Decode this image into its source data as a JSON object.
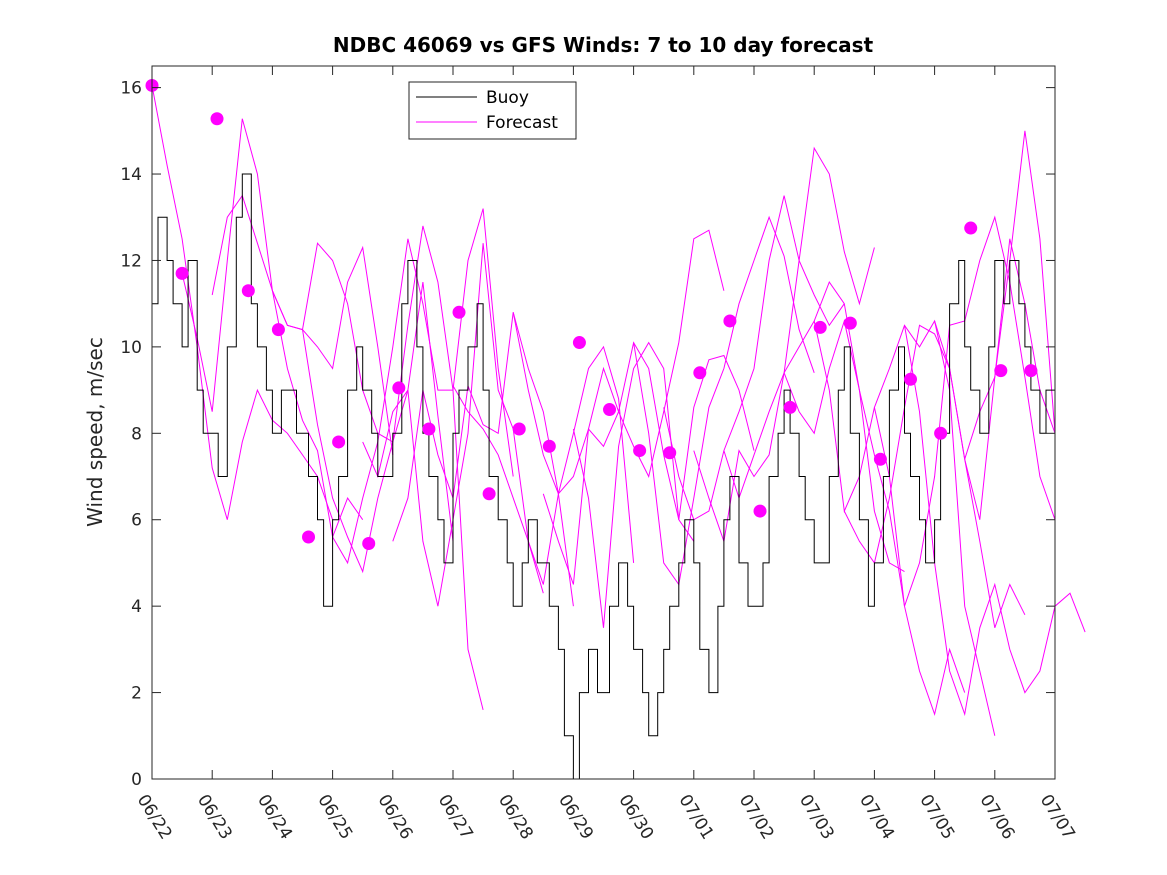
{
  "chart_data": {
    "type": "line",
    "title": "NDBC 46069 vs GFS Winds: 7 to 10 day forecast",
    "xlabel": "",
    "ylabel": "Wind speed, m/sec",
    "xlim": [
      0,
      15
    ],
    "ylim": [
      0,
      16.5
    ],
    "x_ticks": [
      "06/22",
      "06/23",
      "06/24",
      "06/25",
      "06/26",
      "06/27",
      "06/28",
      "06/29",
      "06/30",
      "07/01",
      "07/02",
      "07/03",
      "07/04",
      "07/05",
      "07/06",
      "07/07"
    ],
    "y_ticks": [
      0,
      2,
      4,
      6,
      8,
      10,
      12,
      14,
      16
    ],
    "grid": false,
    "legend": {
      "position": "top-center",
      "entries": [
        "Buoy",
        "Forecast"
      ]
    },
    "colors": {
      "buoy": "#000000",
      "forecast": "#ff00ff"
    },
    "series": [
      {
        "name": "Buoy",
        "x": [
          0,
          0.1,
          0.25,
          0.35,
          0.5,
          0.6,
          0.75,
          0.85,
          1.0,
          1.1,
          1.25,
          1.4,
          1.5,
          1.65,
          1.75,
          1.9,
          2.0,
          2.15,
          2.25,
          2.4,
          2.5,
          2.6,
          2.75,
          2.85,
          3.0,
          3.1,
          3.25,
          3.4,
          3.5,
          3.65,
          3.75,
          3.9,
          4.0,
          4.15,
          4.25,
          4.4,
          4.5,
          4.6,
          4.75,
          4.85,
          5.0,
          5.1,
          5.25,
          5.4,
          5.5,
          5.6,
          5.75,
          5.9,
          6.0,
          6.15,
          6.25,
          6.4,
          6.5,
          6.6,
          6.75,
          6.85,
          7.0,
          7.1,
          7.25,
          7.4,
          7.5,
          7.6,
          7.75,
          7.9,
          8.0,
          8.15,
          8.25,
          8.4,
          8.5,
          8.6,
          8.75,
          8.85,
          9.0,
          9.1,
          9.25,
          9.4,
          9.5,
          9.6,
          9.75,
          9.9,
          10.0,
          10.15,
          10.25,
          10.4,
          10.5,
          10.6,
          10.75,
          10.85,
          11.0,
          11.1,
          11.25,
          11.4,
          11.5,
          11.6,
          11.75,
          11.9,
          12.0,
          12.15,
          12.25,
          12.4,
          12.5,
          12.6,
          12.75,
          12.85,
          13.0,
          13.1,
          13.25,
          13.4,
          13.5,
          13.6,
          13.75,
          13.9,
          14.0,
          14.15,
          14.25,
          14.4,
          14.5,
          14.6,
          14.75,
          14.85,
          15.0
        ],
        "values": [
          11,
          13,
          12,
          11,
          10,
          12,
          9,
          8,
          8,
          7,
          10,
          13,
          14,
          11,
          10,
          9,
          8,
          9,
          9,
          8,
          8,
          7,
          6,
          4,
          6,
          7,
          9,
          10,
          9,
          8,
          7,
          7,
          8,
          11,
          12,
          10,
          8,
          7,
          6,
          5,
          8,
          9,
          10,
          11,
          9,
          7,
          6,
          5,
          4,
          5,
          6,
          5,
          5,
          4,
          3,
          1,
          0,
          2,
          3,
          2,
          2,
          4,
          5,
          4,
          3,
          2,
          1,
          2,
          3,
          4,
          5,
          6,
          5,
          3,
          2,
          4,
          6,
          7,
          5,
          4,
          4,
          5,
          7,
          8,
          9,
          8,
          7,
          6,
          5,
          5,
          7,
          9,
          10,
          8,
          6,
          4,
          5,
          7,
          9,
          10,
          8,
          7,
          6,
          5,
          6,
          8,
          11,
          12,
          10,
          9,
          8,
          10,
          12,
          11,
          12,
          11,
          10,
          9,
          8,
          9,
          10
        ]
      },
      {
        "name": "Forecast",
        "runs": [
          {
            "x": [
              0,
              0.25,
              0.5,
              0.75,
              1.0,
              1.25,
              1.5,
              1.75,
              2.0,
              2.25,
              2.5,
              2.75,
              3.0
            ],
            "values": [
              16.05,
              14.2,
              12.5,
              10.0,
              7.2,
              6.0,
              7.8,
              9.0,
              8.3,
              8.0,
              7.5,
              7.0,
              6.0
            ]
          },
          {
            "x": [
              0.5,
              0.75,
              1.0,
              1.25,
              1.5,
              1.75,
              2.0,
              2.25,
              2.5,
              2.75,
              3.0,
              3.25,
              3.5
            ],
            "values": [
              11.7,
              10.2,
              8.5,
              12.0,
              15.28,
              14.0,
              11.3,
              9.5,
              8.3,
              7.6,
              5.6,
              6.5,
              6.0
            ]
          },
          {
            "x": [
              1.0,
              1.25,
              1.5,
              1.75,
              2.0,
              2.25,
              2.5,
              2.75,
              3.0,
              3.25,
              3.5,
              3.75,
              4.0
            ],
            "values": [
              11.2,
              13.0,
              13.5,
              12.4,
              11.3,
              10.5,
              10.4,
              10.0,
              9.5,
              11.5,
              12.3,
              10.0,
              7.5
            ]
          },
          {
            "x": [
              2.0,
              2.25,
              2.5,
              2.75,
              3.0,
              3.25,
              3.5,
              3.75,
              4.0,
              4.25,
              4.5,
              4.75,
              5.0
            ],
            "values": [
              11.3,
              10.5,
              10.4,
              12.4,
              12.0,
              11.0,
              9.0,
              8.0,
              7.8,
              9.0,
              11.5,
              8.4,
              5.5
            ]
          },
          {
            "x": [
              2.5,
              2.75,
              3.0,
              3.25,
              3.5,
              3.75,
              4.0,
              4.25,
              4.5,
              4.75,
              5.0,
              5.25,
              5.5
            ],
            "values": [
              10.4,
              8.2,
              6.5,
              5.6,
              4.8,
              6.5,
              7.8,
              10.5,
              12.8,
              11.5,
              9.0,
              3.0,
              1.6
            ]
          },
          {
            "x": [
              3.0,
              3.25,
              3.5,
              3.75,
              4.0,
              4.25,
              4.5,
              4.75,
              5.0,
              5.25,
              5.5,
              5.75,
              6.0
            ],
            "values": [
              5.6,
              5.0,
              6.5,
              7.8,
              10.0,
              12.5,
              11.0,
              9.0,
              9.0,
              12.0,
              13.2,
              9.5,
              7.0
            ]
          },
          {
            "x": [
              3.5,
              3.75,
              4.0,
              4.25,
              4.5,
              4.75,
              5.0,
              5.25,
              5.5,
              5.75,
              6.0,
              6.25,
              6.5
            ],
            "values": [
              7.8,
              7.0,
              8.5,
              9.0,
              5.5,
              4.0,
              6.0,
              8.0,
              12.4,
              9.0,
              8.1,
              5.5,
              4.3
            ]
          },
          {
            "x": [
              4.0,
              4.25,
              4.5,
              4.75,
              5.0,
              5.25,
              5.5,
              5.75,
              6.0,
              6.25,
              6.5,
              6.75,
              7.0
            ],
            "values": [
              5.5,
              6.5,
              9.0,
              7.5,
              6.5,
              9.1,
              8.2,
              8.0,
              10.8,
              9.5,
              8.5,
              6.6,
              4.0
            ]
          },
          {
            "x": [
              5.0,
              5.25,
              5.5,
              5.75,
              6.0,
              6.25,
              6.5,
              6.75,
              7.0,
              7.25,
              7.5,
              7.75,
              8.0
            ],
            "values": [
              9.1,
              8.5,
              8.1,
              7.5,
              6.5,
              5.5,
              4.5,
              6.6,
              8.0,
              9.5,
              10.0,
              8.8,
              5.0
            ]
          },
          {
            "x": [
              6.0,
              6.25,
              6.5,
              6.75,
              7.0,
              7.25,
              7.5,
              7.75,
              8.0,
              8.25,
              8.5,
              8.75,
              9.0
            ],
            "values": [
              10.8,
              9.0,
              7.5,
              6.6,
              7.0,
              8.1,
              7.7,
              8.5,
              10.1,
              9.5,
              7.5,
              6.0,
              5.5
            ]
          },
          {
            "x": [
              6.5,
              6.75,
              7.0,
              7.25,
              7.5,
              7.75,
              8.0,
              8.25,
              8.5,
              8.75,
              9.0,
              9.25,
              9.5
            ],
            "values": [
              6.6,
              5.5,
              4.5,
              8.1,
              9.5,
              8.5,
              7.7,
              7.0,
              8.5,
              10.1,
              12.5,
              12.7,
              11.3
            ]
          },
          {
            "x": [
              7.0,
              7.25,
              7.5,
              7.75,
              8.0,
              8.25,
              8.5,
              8.75,
              9.0,
              9.25,
              9.5,
              9.75,
              10.0
            ],
            "values": [
              8.1,
              6.5,
              3.5,
              7.7,
              9.5,
              10.1,
              9.5,
              6.0,
              8.6,
              9.7,
              9.8,
              9.0,
              7.6
            ]
          },
          {
            "x": [
              8.0,
              8.25,
              8.5,
              8.75,
              9.0,
              9.25,
              9.5,
              9.75,
              10.0,
              10.25,
              10.5,
              10.75,
              11.0
            ],
            "values": [
              10.1,
              8.0,
              5.0,
              4.5,
              6.5,
              8.6,
              9.5,
              11.0,
              12.0,
              13.0,
              12.1,
              10.4,
              9.4
            ]
          },
          {
            "x": [
              8.5,
              8.75,
              9.0,
              9.25,
              9.5,
              9.75,
              10.0,
              10.25,
              10.5,
              10.75,
              11.0,
              11.25,
              11.5
            ],
            "values": [
              8.6,
              7.0,
              6.0,
              6.2,
              7.6,
              8.5,
              9.5,
              12.0,
              13.5,
              12.0,
              11.2,
              10.5,
              11.0
            ]
          },
          {
            "x": [
              9.0,
              9.25,
              9.5,
              9.75,
              10.0,
              10.25,
              10.5,
              10.75,
              11.0,
              11.25,
              11.5,
              11.75,
              12.0
            ],
            "values": [
              7.6,
              6.5,
              5.5,
              7.6,
              7.0,
              7.5,
              9.4,
              12.0,
              14.6,
              14.0,
              12.2,
              11.0,
              12.3
            ]
          },
          {
            "x": [
              9.5,
              9.75,
              10.0,
              10.25,
              10.5,
              10.75,
              11.0,
              11.25,
              11.5,
              11.75,
              12.0,
              12.25,
              12.5
            ],
            "values": [
              7.6,
              6.5,
              7.5,
              8.5,
              9.4,
              10.0,
              10.6,
              11.5,
              11.0,
              9.0,
              6.2,
              5.0,
              4.8
            ]
          },
          {
            "x": [
              10.5,
              10.75,
              11.0,
              11.25,
              11.5,
              11.75,
              12.0,
              12.25,
              12.5,
              12.75,
              13.0,
              13.25,
              13.5
            ],
            "values": [
              9.4,
              8.5,
              8.0,
              9.5,
              10.6,
              9.0,
              7.5,
              6.2,
              4.0,
              2.5,
              1.5,
              3.0,
              2.0
            ]
          },
          {
            "x": [
              11.0,
              11.25,
              11.5,
              11.75,
              12.0,
              12.25,
              12.5,
              12.75,
              13.0,
              13.25,
              13.5,
              13.75,
              14.0
            ],
            "values": [
              10.6,
              9.0,
              6.2,
              7.0,
              8.6,
              9.5,
              10.5,
              10.0,
              10.6,
              9.0,
              4.0,
              2.5,
              1.0
            ]
          },
          {
            "x": [
              11.5,
              11.75,
              12.0,
              12.25,
              12.5,
              12.75,
              13.0,
              13.25,
              13.5,
              13.75,
              14.0,
              14.25,
              14.5
            ],
            "values": [
              6.2,
              5.5,
              5.0,
              6.5,
              8.6,
              10.5,
              10.3,
              9.5,
              7.4,
              5.5,
              3.5,
              4.5,
              3.8
            ]
          },
          {
            "x": [
              12.0,
              12.25,
              12.5,
              12.75,
              13.0,
              13.25,
              13.5,
              13.75,
              14.0,
              14.25,
              14.5,
              14.75,
              15.0
            ],
            "values": [
              8.6,
              7.0,
              4.0,
              5.0,
              7.0,
              10.5,
              10.6,
              12.0,
              13.0,
              11.5,
              9.3,
              7.0,
              6.0
            ]
          },
          {
            "x": [
              12.5,
              12.75,
              13.0,
              13.25,
              13.5,
              13.75,
              14.0,
              14.25,
              14.5,
              14.75,
              15.0,
              15.25,
              15.5
            ],
            "values": [
              10.5,
              8.5,
              5.0,
              2.5,
              1.5,
              3.5,
              4.5,
              3.0,
              2.0,
              2.5,
              4.0,
              4.3,
              3.4
            ]
          },
          {
            "x": [
              13.0,
              13.25,
              13.5,
              13.75,
              14.0,
              14.25,
              14.5,
              14.75,
              15.0
            ],
            "values": [
              10.6,
              9.5,
              7.4,
              8.5,
              9.3,
              12.0,
              15.0,
              12.5,
              8.0
            ]
          },
          {
            "x": [
              13.5,
              13.75,
              14.0,
              14.25,
              14.5,
              14.75,
              15.0
            ],
            "values": [
              7.4,
              6.0,
              9.3,
              12.5,
              11.0,
              9.0,
              8.0
            ]
          }
        ],
        "markers": {
          "x": [
            0,
            0.5,
            1.08,
            1.6,
            2.1,
            2.6,
            3.1,
            3.6,
            4.1,
            4.6,
            5.1,
            5.6,
            6.1,
            6.6,
            7.1,
            7.6,
            8.1,
            8.6,
            9.1,
            9.6,
            10.1,
            10.6,
            11.1,
            11.6,
            12.1,
            12.6,
            13.1,
            13.6,
            14.1,
            14.6
          ],
          "values": [
            16.05,
            11.7,
            15.28,
            11.3,
            10.4,
            5.6,
            7.8,
            5.45,
            9.05,
            8.1,
            10.8,
            6.6,
            8.1,
            7.7,
            10.1,
            8.55,
            7.6,
            7.55,
            9.4,
            10.6,
            6.2,
            8.6,
            10.45,
            10.55,
            7.4,
            9.25,
            8.0,
            12.75,
            9.45,
            9.45
          ]
        }
      }
    ]
  }
}
